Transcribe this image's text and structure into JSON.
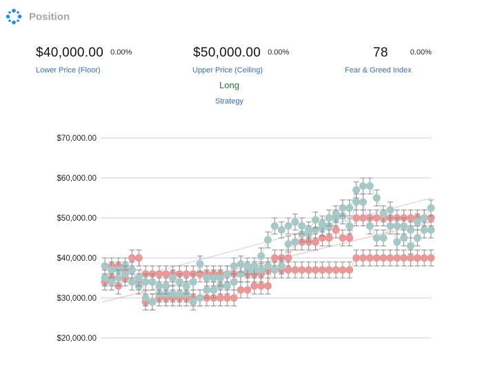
{
  "header": {
    "title": "Position",
    "icon": "position-icon"
  },
  "stats": [
    {
      "value": "$40,000.00",
      "change": "0.00%",
      "label": "Lower Price (Floor)"
    },
    {
      "value": "$50,000.00",
      "change": "0.00%",
      "label": "Upper Price (Ceiling)"
    },
    {
      "value": "78",
      "change": "0.00%",
      "label": "Fear & Greed Index"
    }
  ],
  "strategy": {
    "value": "Long",
    "label": "Strategy"
  },
  "colors": {
    "label_blue": "#3b6bb5",
    "strategy_green": "#1f7a3a",
    "marker_red": "#e89a9a",
    "marker_teal": "#a8c8c8",
    "error_bar": "#888888",
    "grid": "#cccccc"
  },
  "chart_data": {
    "type": "scatter",
    "y_tick_labels": [
      "$70,000.00",
      "$60,000.00",
      "$50,000.00",
      "$40,000.00",
      "$30,000.00",
      "$20,000.00"
    ],
    "y_ticks": [
      70000,
      60000,
      50000,
      40000,
      30000,
      20000
    ],
    "ylim": [
      18000,
      72000
    ],
    "grid": true,
    "error_bar": 2000,
    "series": [
      {
        "color": "#e89a9a",
        "values": [
          34000,
          38000,
          38000,
          37000,
          40000,
          40000,
          29000,
          29000,
          30000,
          30000,
          30000,
          30000,
          30000,
          30000,
          30000,
          30000,
          30000,
          30000,
          30000,
          30000,
          32000,
          32000,
          33000,
          33000,
          33000,
          40000,
          40000,
          40000,
          44000,
          44000,
          44000,
          44000,
          45000,
          45000,
          47000,
          45000,
          45000,
          50000,
          50000,
          50000,
          50000,
          50000,
          50000,
          50000,
          50000,
          50000,
          50000,
          50000,
          50000
        ]
      },
      {
        "color": "#e89a9a",
        "values": [
          35000,
          35000,
          33000,
          35000,
          37000,
          34000,
          36000,
          36000,
          36000,
          36000,
          36000,
          36000,
          36000,
          36000,
          36000,
          36000,
          36000,
          36000,
          36000,
          36000,
          36000,
          36000,
          36000,
          36000,
          37000,
          37000,
          37000,
          37000,
          37000,
          37000,
          37000,
          37000,
          37000,
          37000,
          37000,
          37000,
          37000,
          40000,
          40000,
          40000,
          40000,
          40000,
          40000,
          40000,
          40000,
          40000,
          40000,
          40000,
          40000
        ]
      },
      {
        "color": "#a8c8c8",
        "values": [
          38000,
          37000,
          37000,
          38000,
          37000,
          33000,
          30000,
          29000,
          31000,
          31000,
          31000,
          31000,
          31000,
          29000,
          30000,
          32000,
          32000,
          33000,
          33000,
          34000,
          36000,
          37000,
          37000,
          37000,
          38000,
          37000,
          38000,
          43500,
          44000,
          46000,
          46000,
          47000,
          47500,
          48000,
          50000,
          50500,
          48000,
          54000,
          54000,
          48000,
          45000,
          45000,
          48000,
          44000,
          45000,
          43000,
          45000,
          47000,
          47000
        ]
      },
      {
        "color": "#a8c8c8",
        "values": [
          35000,
          34000,
          35000,
          36000,
          34000,
          35000,
          34000,
          34000,
          33000,
          33000,
          35000,
          34000,
          33000,
          34000,
          38500,
          35000,
          35000,
          35000,
          36000,
          38000,
          38500,
          38000,
          38000,
          40500,
          44500,
          48000,
          47000,
          48000,
          49000,
          48000,
          47000,
          49500,
          48500,
          50000,
          51000,
          52500,
          52500,
          57000,
          58000,
          58000,
          55000,
          51000,
          52000,
          48000,
          48000,
          47000,
          49000,
          50000,
          52500
        ]
      }
    ],
    "trendlines": [
      {
        "color": "#a8c8c8",
        "from": 33000,
        "to": 55000
      },
      {
        "color": "#e89a9a",
        "from": 29000,
        "to": 49000
      }
    ]
  }
}
